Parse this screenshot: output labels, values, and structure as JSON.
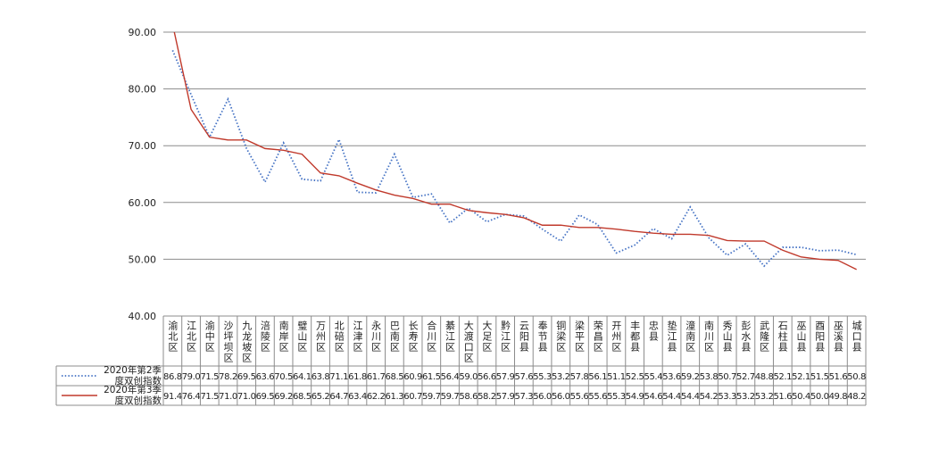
{
  "chart_data": {
    "type": "line",
    "categories": [
      "渝北区",
      "江北区",
      "渝中区",
      "沙坪坝区",
      "九龙坡区",
      "涪陵区",
      "南岸区",
      "璧山区",
      "万州区",
      "北碚区",
      "江津区",
      "永川区",
      "巴南区",
      "长寿区",
      "合川区",
      "綦江区",
      "大渡口区",
      "大足区",
      "黔江区",
      "云阳县",
      "奉节县",
      "铜梁区",
      "梁平区",
      "荣昌区",
      "开州区",
      "丰都县",
      "忠县",
      "垫江县",
      "潼南区",
      "南川区",
      "秀山县",
      "彭水县",
      "武隆区",
      "石柱县",
      "巫山县",
      "酉阳县",
      "巫溪县",
      "城口县"
    ],
    "series": [
      {
        "name": "2020年第2季度双创指数",
        "color": "#4472c4",
        "style": "dotted",
        "values": [
          86.8,
          79.0,
          71.5,
          78.2,
          69.5,
          63.6,
          70.5,
          64.1,
          63.8,
          71.1,
          61.8,
          61.7,
          68.5,
          60.9,
          61.5,
          56.4,
          59.0,
          56.6,
          57.9,
          57.6,
          55.3,
          53.2,
          57.8,
          56.1,
          51.1,
          52.5,
          55.4,
          53.6,
          59.2,
          53.8,
          50.7,
          52.7,
          48.8,
          52.1,
          52.1,
          51.5,
          51.6,
          50.8
        ],
        "value_labels": [
          "86.8",
          "79.0",
          "71.5",
          "78.2",
          "69.5",
          "63.6",
          "70.5",
          "64.1",
          "63.8",
          "71.1",
          "61.8",
          "61.7",
          "68.5",
          "60.9",
          "61.5",
          "56.4",
          "59.0",
          "56.6",
          "57.9",
          "57.6",
          "55.3",
          "53.2",
          "57.8",
          "56.1",
          "51.1",
          "52.5",
          "55.4",
          "53.6",
          "59.2",
          "53.8",
          "50.7",
          "52.7",
          "48.8",
          "52.1",
          "52.1",
          "51.5",
          "51.6",
          "50.8"
        ]
      },
      {
        "name": "2020年第3季度双创指数",
        "color": "#c0392b",
        "style": "solid",
        "values": [
          91.4,
          76.4,
          71.5,
          71.0,
          71.0,
          69.5,
          69.2,
          68.5,
          65.2,
          64.7,
          63.4,
          62.2,
          61.3,
          60.7,
          59.7,
          59.7,
          58.6,
          58.2,
          57.9,
          57.3,
          56.0,
          56.0,
          55.6,
          55.6,
          55.3,
          54.9,
          54.6,
          54.4,
          54.4,
          54.2,
          53.3,
          53.2,
          53.2,
          51.6,
          50.4,
          50.0,
          49.8,
          48.2
        ],
        "value_labels": [
          "91.4",
          "76.4",
          "71.5",
          "71.0",
          "71.0",
          "69.5",
          "69.2",
          "68.5",
          "65.2",
          "64.7",
          "63.4",
          "62.2",
          "61.3",
          "60.7",
          "59.7",
          "59.7",
          "58.6",
          "58.2",
          "57.9",
          "57.3",
          "56.0",
          "56.0",
          "55.6",
          "55.6",
          "55.3",
          "54.9",
          "54.6",
          "54.4",
          "54.4",
          "54.2",
          "53.3",
          "53.2",
          "53.2",
          "51.6",
          "50.4",
          "50.0",
          "49.8",
          "48.2"
        ]
      }
    ],
    "ylim": [
      40,
      90
    ],
    "yticks": [
      {
        "value": 40,
        "label": "40.00"
      },
      {
        "value": 50,
        "label": "50.00"
      },
      {
        "value": 60,
        "label": "60.00"
      },
      {
        "value": 70,
        "label": "70.00"
      },
      {
        "value": 80,
        "label": "80.00"
      },
      {
        "value": 90,
        "label": "90.00"
      }
    ],
    "grid": true
  }
}
